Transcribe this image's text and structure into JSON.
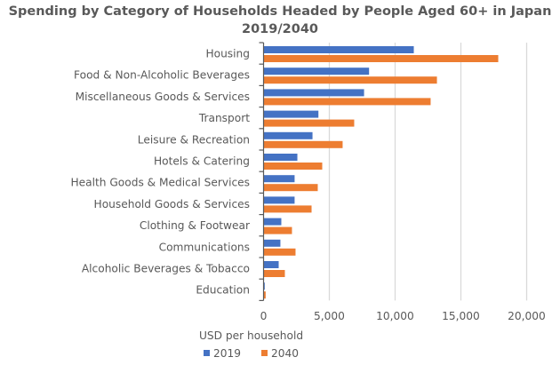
{
  "chart_data": {
    "type": "bar",
    "orientation": "horizontal",
    "title": "Spending by Category of Households Headed by People Aged 60+ in Japan",
    "subtitle": "2019/2040",
    "xlabel": "USD per household",
    "ylabel": "",
    "xlim": [
      0,
      20000
    ],
    "xticks": [
      0,
      5000,
      10000,
      15000,
      20000
    ],
    "xtick_labels": [
      "0",
      "5,000",
      "10,000",
      "15,000",
      "20,000"
    ],
    "grid": true,
    "legend_position": "bottom",
    "categories": [
      "Housing",
      "Food & Non-Alcoholic Beverages",
      "Miscellaneous Goods & Services",
      "Transport",
      "Leisure & Recreation",
      "Hotels & Catering",
      "Health Goods & Medical Services",
      "Household Goods & Services",
      "Clothing & Footwear",
      "Communications",
      "Alcoholic Beverages & Tobacco",
      "Education"
    ],
    "series": [
      {
        "name": "2019",
        "color": "#4472C4",
        "values": [
          11420,
          8020,
          7640,
          4170,
          3720,
          2570,
          2360,
          2360,
          1350,
          1280,
          1150,
          90
        ]
      },
      {
        "name": "2040",
        "color": "#ED7D31",
        "values": [
          17840,
          13180,
          12700,
          6890,
          6010,
          4460,
          4120,
          3650,
          2160,
          2430,
          1620,
          160
        ]
      }
    ]
  }
}
